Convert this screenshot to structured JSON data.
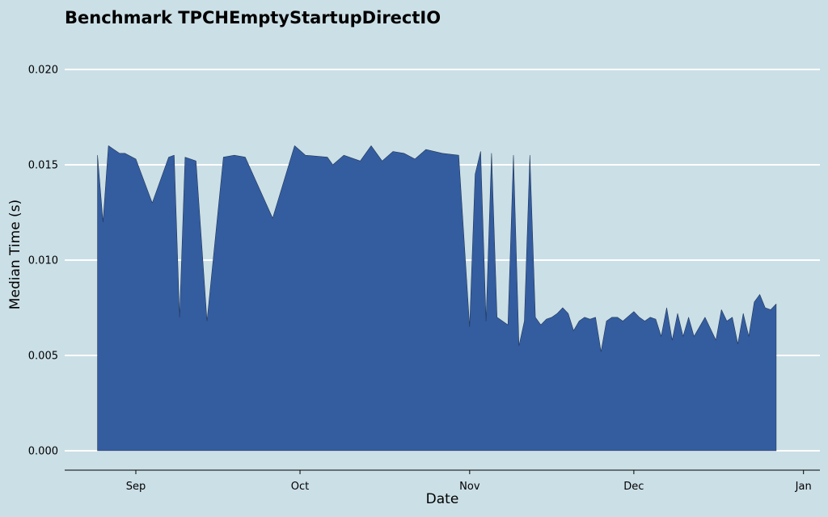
{
  "chart_data": {
    "type": "area",
    "title": "Benchmark TPCHEmptyStartupDirectIO",
    "xlabel": "Date",
    "ylabel": "Median Time (s)",
    "ylim": [
      0.0,
      0.021
    ],
    "xlim": [
      "2015-08-19",
      "2016-01-04"
    ],
    "y_ticks": [
      0.0,
      0.005,
      0.01,
      0.015,
      0.02
    ],
    "y_tick_labels": [
      "0.000",
      "0.005",
      "0.010",
      "0.015",
      "0.020"
    ],
    "x_ticks": [
      "2015-09-01",
      "2015-10-01",
      "2015-11-01",
      "2015-12-01",
      "2016-01-01"
    ],
    "x_tick_labels": [
      "Sep",
      "Oct",
      "Nov",
      "Dec",
      "Jan"
    ],
    "grid": true,
    "legend": false,
    "color": "#345da0",
    "series": [
      {
        "x": [
          "2015-08-25",
          "2015-08-26",
          "2015-08-27",
          "2015-08-28",
          "2015-08-29",
          "2015-08-30",
          "2015-09-01",
          "2015-09-04",
          "2015-09-07",
          "2015-09-08",
          "2015-09-09",
          "2015-09-10",
          "2015-09-11",
          "2015-09-12",
          "2015-09-14",
          "2015-09-17",
          "2015-09-19",
          "2015-09-21",
          "2015-09-26",
          "2015-09-30",
          "2015-10-02",
          "2015-10-06",
          "2015-10-07",
          "2015-10-09",
          "2015-10-12",
          "2015-10-14",
          "2015-10-16",
          "2015-10-18",
          "2015-10-20",
          "2015-10-22",
          "2015-10-24",
          "2015-10-27",
          "2015-10-30",
          "2015-11-01",
          "2015-11-02",
          "2015-11-03",
          "2015-11-04",
          "2015-11-05",
          "2015-11-06",
          "2015-11-08",
          "2015-11-09",
          "2015-11-10",
          "2015-11-11",
          "2015-11-12",
          "2015-11-13",
          "2015-11-14",
          "2015-11-15",
          "2015-11-16",
          "2015-11-17",
          "2015-11-18",
          "2015-11-19",
          "2015-11-20",
          "2015-11-21",
          "2015-11-22",
          "2015-11-23",
          "2015-11-24",
          "2015-11-25",
          "2015-11-26",
          "2015-11-27",
          "2015-11-28",
          "2015-11-29",
          "2015-12-01",
          "2015-12-02",
          "2015-12-03",
          "2015-12-04",
          "2015-12-05",
          "2015-12-06",
          "2015-12-07",
          "2015-12-08",
          "2015-12-09",
          "2015-12-10",
          "2015-12-11",
          "2015-12-12",
          "2015-12-14",
          "2015-12-16",
          "2015-12-17",
          "2015-12-18",
          "2015-12-19",
          "2015-12-20",
          "2015-12-21",
          "2015-12-22",
          "2015-12-23",
          "2015-12-24",
          "2015-12-25",
          "2015-12-26",
          "2015-12-27"
        ],
        "values": [
          0.0155,
          0.012,
          0.016,
          0.0158,
          0.0156,
          0.0156,
          0.0153,
          0.013,
          0.0154,
          0.0155,
          0.007,
          0.0154,
          0.0153,
          0.0152,
          0.0068,
          0.0154,
          0.0155,
          0.0154,
          0.0122,
          0.016,
          0.0155,
          0.0154,
          0.015,
          0.0155,
          0.0152,
          0.016,
          0.0152,
          0.0157,
          0.0156,
          0.0153,
          0.0158,
          0.0156,
          0.0155,
          0.0065,
          0.0145,
          0.0157,
          0.0068,
          0.0156,
          0.007,
          0.0066,
          0.0155,
          0.0055,
          0.0068,
          0.0155,
          0.007,
          0.0066,
          0.0069,
          0.007,
          0.0072,
          0.0075,
          0.0072,
          0.0063,
          0.0068,
          0.007,
          0.0069,
          0.007,
          0.0052,
          0.0068,
          0.007,
          0.007,
          0.0068,
          0.0073,
          0.007,
          0.0068,
          0.007,
          0.0069,
          0.006,
          0.0075,
          0.0058,
          0.0072,
          0.006,
          0.007,
          0.006,
          0.007,
          0.0058,
          0.0074,
          0.0068,
          0.007,
          0.0056,
          0.0072,
          0.006,
          0.0078,
          0.0082,
          0.0075,
          0.0074,
          0.0077
        ]
      }
    ]
  }
}
